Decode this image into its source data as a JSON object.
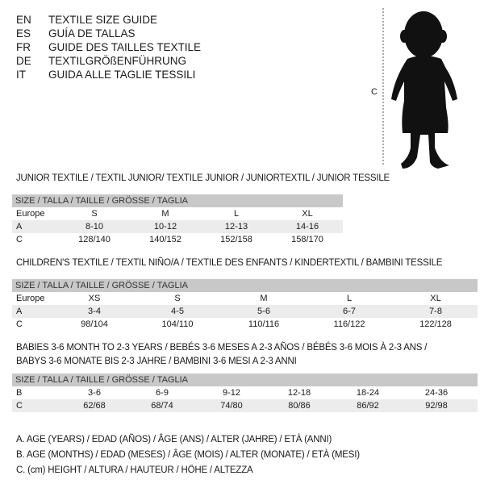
{
  "languages": [
    {
      "code": "EN",
      "text": "TEXTILE SIZE GUIDE"
    },
    {
      "code": "ES",
      "text": "GUÍA DE TALLAS"
    },
    {
      "code": "FR",
      "text": "GUIDE DES TAILLES TEXTILE"
    },
    {
      "code": "DE",
      "text": "TEXTILGRÖßENFÜHRUNG"
    },
    {
      "code": "IT",
      "text": "GUIDA ALLE TAGLIE TESSILI"
    }
  ],
  "figure": {
    "dimension_label": "C",
    "icon": "child-silhouette"
  },
  "tables": [
    {
      "title": "JUNIOR TEXTILE / TEXTIL JUNIOR/ TEXTILE JUNIOR / JUNIORTEXTIL / JUNIOR TESSILE",
      "header": "SIZE / TALLA / TAILLE / GRÖSSE / TAGLIA",
      "rows": [
        {
          "label": "Europe",
          "values": [
            "S",
            "M",
            "L",
            "XL"
          ]
        },
        {
          "label": "A",
          "values": [
            "8-10",
            "10-12",
            "12-13",
            "14-16"
          ]
        },
        {
          "label": "C",
          "values": [
            "128/140",
            "140/152",
            "152/158",
            "158/170"
          ]
        }
      ]
    },
    {
      "title": "CHILDREN'S TEXTILE / TEXTIL NIÑO/A / TEXTILE DES ENFANTS / KINDERTEXTIL / BAMBINI TESSILE",
      "header": "SIZE / TALLA / TAILLE / GRÖSSE / TAGLIA",
      "rows": [
        {
          "label": "Europe",
          "values": [
            "XS",
            "S",
            "M",
            "L",
            "XL"
          ]
        },
        {
          "label": "A",
          "values": [
            "3-4",
            "4-5",
            "5-6",
            "6-7",
            "7-8"
          ]
        },
        {
          "label": "C",
          "values": [
            "98/104",
            "104/110",
            "110/116",
            "116/122",
            "122/128"
          ]
        }
      ]
    },
    {
      "title": "BABIES 3-6 MONTH TO 2-3 YEARS / BEBÉS 3-6 MESES A 2-3 AÑOS / BÉBÉS 3-6 MOIS À 2-3 ANS /",
      "title2": "BABYS 3-6 MONATE BIS 2-3 JAHRE / BAMBINI 3-6 MESI A 2-3 ANNI",
      "header": "SIZE / TALLA / TAILLE / GRÖSSE / TAGLIA",
      "rows": [
        {
          "label": "B",
          "values": [
            "3-6",
            "6-9",
            "9-12",
            "12-18",
            "18-24",
            "24-36"
          ]
        },
        {
          "label": "C",
          "values": [
            "62/68",
            "68/74",
            "74/80",
            "80/86",
            "86/92",
            "92/98"
          ]
        }
      ]
    }
  ],
  "legend": [
    "A. AGE (YEARS) / EDAD (AÑOS) / ÂGE (ANS) / ALTER (JAHRE) / ETÀ (ANNI)",
    "B. AGE (MONTHS) / EDAD (MESES) / ÂGE (MOIS) / ALTER (MONATE) / ETÀ (MESI)",
    "C. (cm) HEIGHT / ALTURA / HAUTEUR / HÖHE / ALTEZZA"
  ]
}
